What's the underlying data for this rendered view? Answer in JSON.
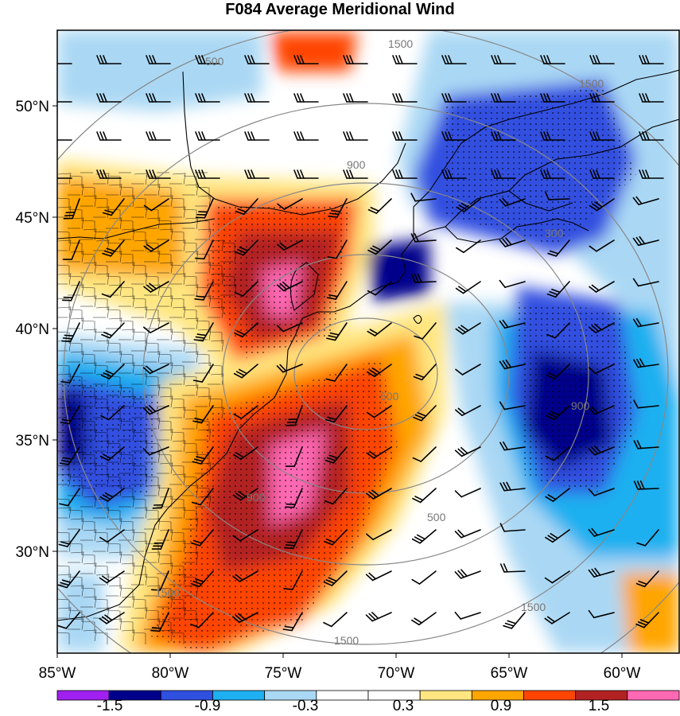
{
  "title": "F084 Average Meridional Wind",
  "lat_labels": [
    "50°N",
    "45°N",
    "40°N",
    "35°N",
    "30°N"
  ],
  "lon_labels": [
    "85°W",
    "80°W",
    "75°W",
    "70°W",
    "65°W",
    "60°W"
  ],
  "contour_labels": [
    "1500",
    "500",
    "1500",
    "900",
    "300",
    "500",
    "500",
    "900",
    "900",
    "1500",
    "1500",
    "1500"
  ],
  "colorbar": {
    "colors": [
      "#a020f0",
      "#00008b",
      "#3050e0",
      "#1eb0f0",
      "#aad8f4",
      "#ffffff",
      "#ffffff",
      "#ffe680",
      "#ffa500",
      "#ff4500",
      "#b22222",
      "#ff69b4"
    ],
    "tick_labels": [
      "-1.5",
      "-0.9",
      "-0.3",
      "0.3",
      "0.9",
      "1.5"
    ]
  },
  "map": {
    "region": "US East Coast / Western North Atlantic",
    "lon_range": [
      -85,
      -57.5
    ],
    "lat_range": [
      26,
      53
    ],
    "features": [
      "filled meridional wind",
      "wind barbs",
      "stippling",
      "gray contours",
      "coastlines",
      "state and county borders"
    ]
  }
}
